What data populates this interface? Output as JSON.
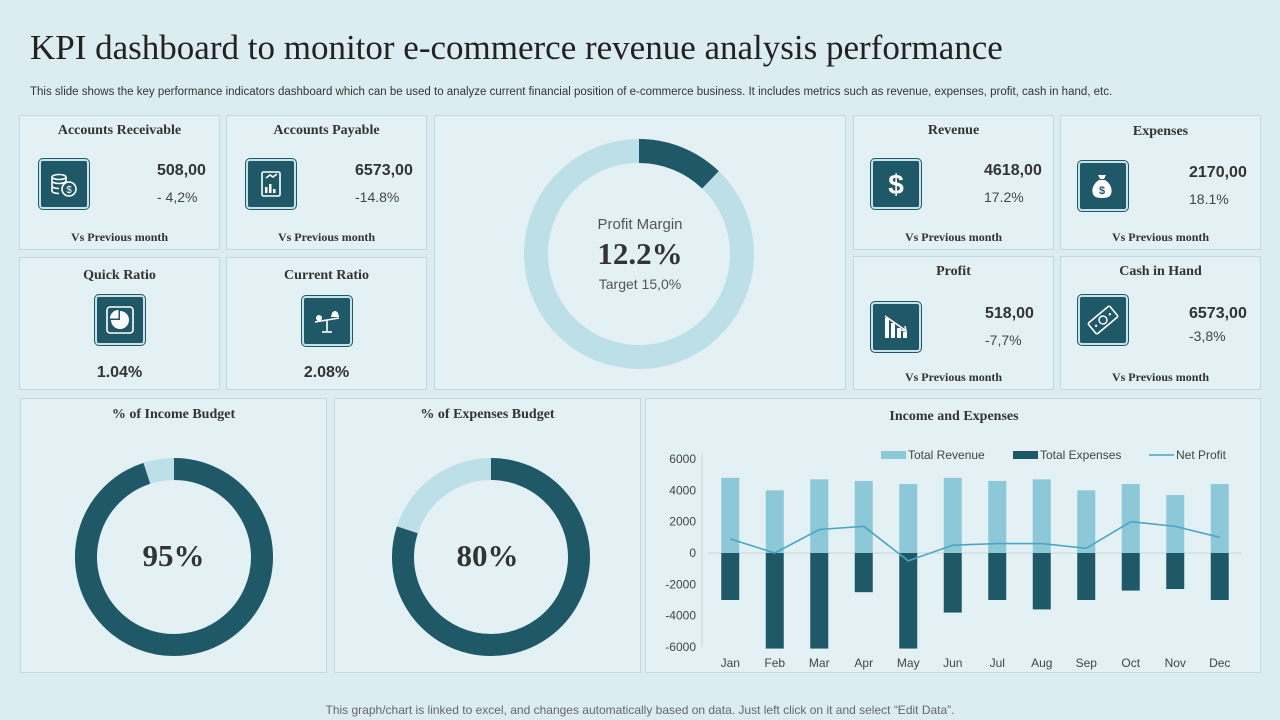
{
  "header": {
    "title": "KPI dashboard to monitor e-commerce revenue analysis performance",
    "subtitle": "This slide shows the key performance indicators dashboard which can be used to analyze current financial position of e-commerce business. It includes metrics such as revenue, expenses, profit, cash in hand, etc."
  },
  "kpis": {
    "accounts_receivable": {
      "title": "Accounts Receivable",
      "value": "508,00",
      "change": "- 4,2%",
      "footer": "Vs Previous month",
      "icon": "coins-icon"
    },
    "accounts_payable": {
      "title": "Accounts Payable",
      "value": "6573,00",
      "change": "-14.8%",
      "footer": "Vs Previous month",
      "icon": "invoice-chart-icon"
    },
    "quick_ratio": {
      "title": "Quick Ratio",
      "value": "1.04%",
      "icon": "pie-chart-icon"
    },
    "current_ratio": {
      "title": "Current Ratio",
      "value": "2.08%",
      "icon": "balance-scale-icon"
    },
    "revenue": {
      "title": "Revenue",
      "value": "4618,00",
      "change": "17.2%",
      "footer": "Vs Previous month",
      "icon": "dollar-icon"
    },
    "expenses": {
      "title": "Expenses",
      "value": "2170,00",
      "change": "18.1%",
      "footer": "Vs Previous month",
      "icon": "money-bag-icon"
    },
    "profit": {
      "title": "Profit",
      "value": "518,00",
      "change": "-7,7%",
      "footer": "Vs Previous month",
      "icon": "declining-bars-icon"
    },
    "cash_in_hand": {
      "title": "Cash in Hand",
      "value": "6573,00",
      "change": "-3,8%",
      "footer": "Vs Previous month",
      "icon": "banknote-icon"
    }
  },
  "profit_margin": {
    "label": "Profit Margin",
    "value_text": "12.2%",
    "target": "Target 15,0%",
    "value": 12.2
  },
  "income_budget": {
    "title": "% of Income Budget",
    "value_text": "95%",
    "value": 95
  },
  "expenses_budget": {
    "title": "% of Expenses Budget",
    "value_text": "80%",
    "value": 80
  },
  "colors": {
    "dark": "#1f5866",
    "light": "#bde0e8",
    "revenue_bar": "#8cc8d8",
    "line": "#4aa6c4"
  },
  "chart_data": [
    {
      "type": "bar",
      "title": "Income and Expenses",
      "categories": [
        "Jan",
        "Feb",
        "Mar",
        "Apr",
        "May",
        "Jun",
        "Jul",
        "Aug",
        "Sep",
        "Oct",
        "Nov",
        "Dec"
      ],
      "series": [
        {
          "name": "Total Revenue",
          "type": "bar",
          "values": [
            4800,
            4000,
            4700,
            4600,
            4400,
            4800,
            4600,
            4700,
            4000,
            4400,
            3700,
            4400
          ]
        },
        {
          "name": "Total Expenses",
          "type": "bar",
          "values": [
            -3000,
            -6100,
            -6100,
            -2500,
            -6100,
            -3800,
            -3000,
            -3600,
            -3000,
            -2400,
            -2300,
            -3000
          ]
        },
        {
          "name": "Net Profit",
          "type": "line",
          "values": [
            900,
            0,
            1500,
            1700,
            -500,
            500,
            600,
            600,
            300,
            2000,
            1700,
            1000
          ]
        }
      ],
      "ylim": [
        -6000,
        6000
      ],
      "yticks": [
        6000,
        4000,
        2000,
        0,
        -2000,
        -4000,
        -6000
      ],
      "legend": "top-right"
    }
  ],
  "footer": "This graph/chart is linked to excel, and changes automatically based on data. Just left click on it and select “Edit Data”."
}
